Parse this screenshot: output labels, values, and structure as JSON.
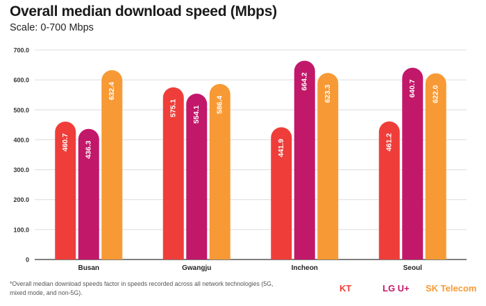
{
  "title": "Overall median download speed (Mbps)",
  "subtitle": "Scale: 0-700 Mbps",
  "footnote": "*Overall median download speeds factor in speeds recorded across all network technologies (5G, mixed mode, and non-5G).",
  "colors": {
    "KT": "#ef3e3a",
    "LG U+": "#c2186a",
    "SK Telecom": "#f79a35",
    "grid": "#dcdcdc",
    "axis": "#333333"
  },
  "chart_data": {
    "type": "bar",
    "title": "Overall median download speed (Mbps)",
    "subtitle": "Scale: 0-700 Mbps",
    "categories": [
      "Busan",
      "Gwangju",
      "Incheon",
      "Seoul"
    ],
    "series": [
      {
        "name": "KT",
        "values": [
          460.7,
          575.1,
          441.9,
          461.2
        ]
      },
      {
        "name": "LG U+",
        "values": [
          436.3,
          554.1,
          664.2,
          640.7
        ]
      },
      {
        "name": "SK Telecom",
        "values": [
          632.4,
          586.4,
          623.3,
          622.0
        ]
      }
    ],
    "value_labels": [
      [
        "460.7",
        "575.1",
        "441.9",
        "461.2"
      ],
      [
        "436.3",
        "554.1",
        "664.2",
        "640.7"
      ],
      [
        "632.4",
        "586.4",
        "623.3",
        "622.0"
      ]
    ],
    "yticks": [
      "0",
      "100.0",
      "200.0",
      "300.0",
      "400.0",
      "500.0",
      "600.0",
      "700.0"
    ],
    "ylim": [
      0,
      700
    ],
    "grid": true,
    "legend_position": "bottom-right"
  }
}
